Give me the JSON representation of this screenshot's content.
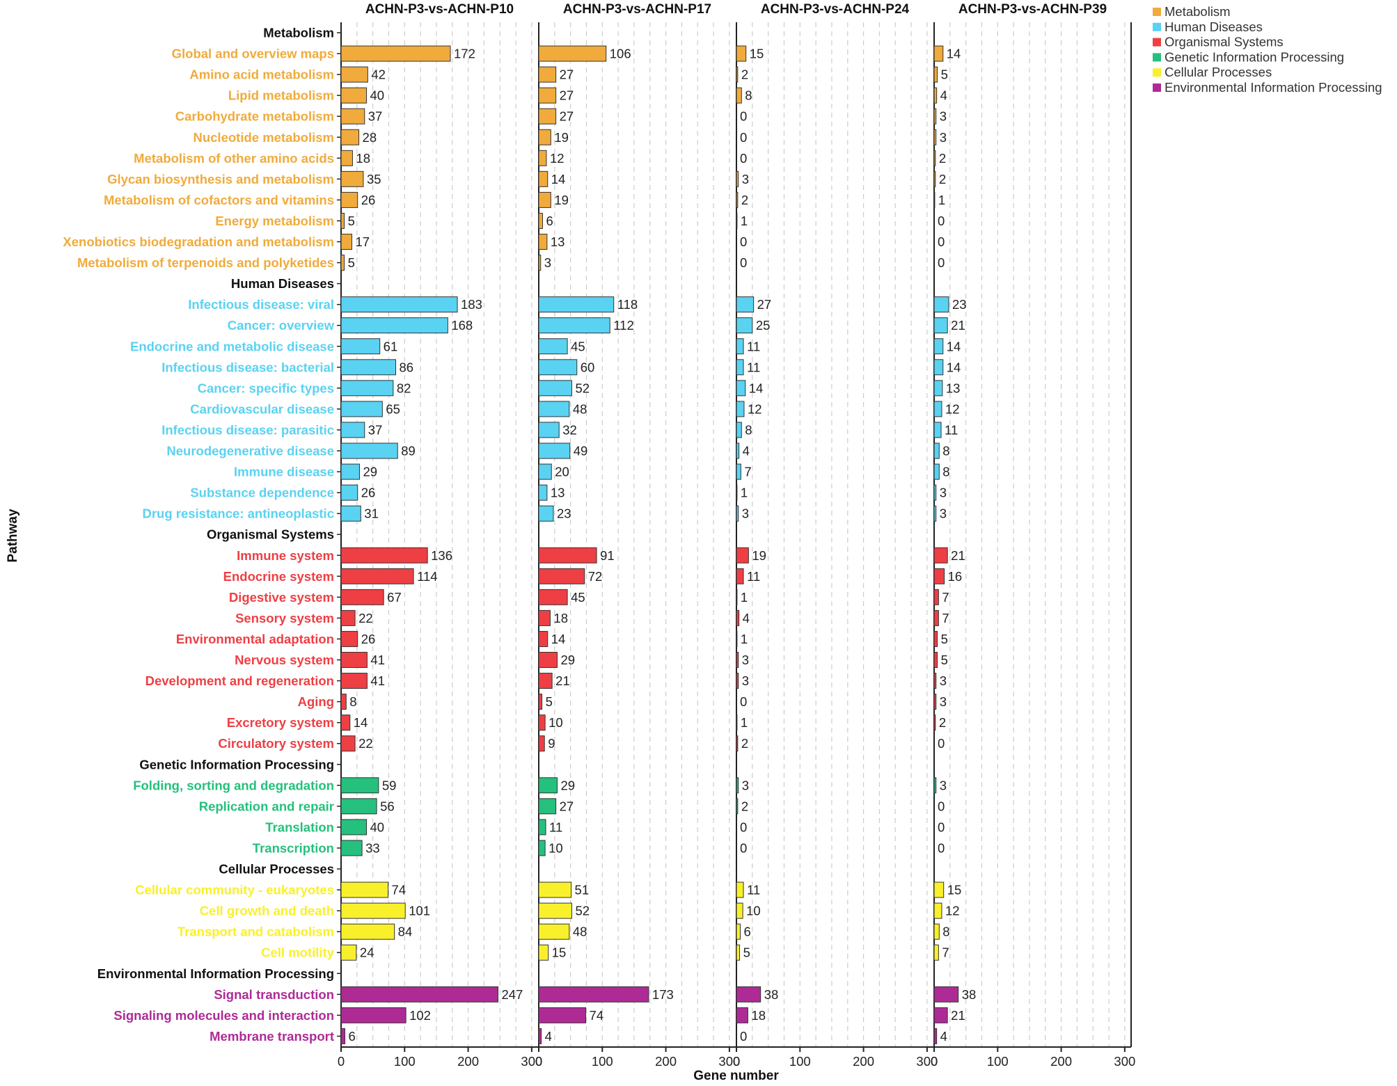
{
  "chart_data": {
    "type": "bar",
    "orientation": "horizontal",
    "xlabel": "Gene number",
    "ylabel": "Pathway",
    "xlim": [
      0,
      310
    ],
    "xticks": [
      0,
      100,
      200,
      300
    ],
    "grid": true,
    "legend_position": "top-right",
    "colors": {
      "Metabolism": "#F0AB3C",
      "Human Diseases": "#5AD2F2",
      "Organismal Systems": "#EE3F44",
      "Genetic Information Processing": "#25C07D",
      "Cellular Processes": "#F9F02C",
      "Environmental Information Processing": "#AE2B96"
    },
    "legend": [
      "Metabolism",
      "Human Diseases",
      "Organismal Systems",
      "Genetic Information Processing",
      "Cellular Processes",
      "Environmental Information Processing"
    ],
    "panels": [
      "ACHN-P3-vs-ACHN-P10",
      "ACHN-P3-vs-ACHN-P17",
      "ACHN-P3-vs-ACHN-P24",
      "ACHN-P3-vs-ACHN-P39"
    ],
    "groups": [
      {
        "name": "Metabolism",
        "pathways": [
          {
            "name": "Global and overview maps",
            "values": [
              172,
              106,
              15,
              14
            ]
          },
          {
            "name": "Amino acid metabolism",
            "values": [
              42,
              27,
              2,
              5
            ]
          },
          {
            "name": "Lipid metabolism",
            "values": [
              40,
              27,
              8,
              4
            ]
          },
          {
            "name": "Carbohydrate metabolism",
            "values": [
              37,
              27,
              0,
              3
            ]
          },
          {
            "name": "Nucleotide metabolism",
            "values": [
              28,
              19,
              0,
              3
            ]
          },
          {
            "name": "Metabolism of other amino acids",
            "values": [
              18,
              12,
              0,
              2
            ]
          },
          {
            "name": "Glycan biosynthesis and metabolism",
            "values": [
              35,
              14,
              3,
              2
            ]
          },
          {
            "name": "Metabolism of cofactors and vitamins",
            "values": [
              26,
              19,
              2,
              1
            ]
          },
          {
            "name": "Energy metabolism",
            "values": [
              5,
              6,
              1,
              0
            ]
          },
          {
            "name": "Xenobiotics biodegradation and metabolism",
            "values": [
              17,
              13,
              0,
              0
            ]
          },
          {
            "name": "Metabolism of terpenoids and polyketides",
            "values": [
              5,
              3,
              0,
              0
            ]
          }
        ]
      },
      {
        "name": "Human Diseases",
        "pathways": [
          {
            "name": "Infectious disease: viral",
            "values": [
              183,
              118,
              27,
              23
            ]
          },
          {
            "name": "Cancer: overview",
            "values": [
              168,
              112,
              25,
              21
            ]
          },
          {
            "name": "Endocrine and metabolic disease",
            "values": [
              61,
              45,
              11,
              14
            ]
          },
          {
            "name": "Infectious disease: bacterial",
            "values": [
              86,
              60,
              11,
              14
            ]
          },
          {
            "name": "Cancer: specific types",
            "values": [
              82,
              52,
              14,
              13
            ]
          },
          {
            "name": "Cardiovascular disease",
            "values": [
              65,
              48,
              12,
              12
            ]
          },
          {
            "name": "Infectious disease: parasitic",
            "values": [
              37,
              32,
              8,
              11
            ]
          },
          {
            "name": "Neurodegenerative disease",
            "values": [
              89,
              49,
              4,
              8
            ]
          },
          {
            "name": "Immune disease",
            "values": [
              29,
              20,
              7,
              8
            ]
          },
          {
            "name": "Substance dependence",
            "values": [
              26,
              13,
              1,
              3
            ]
          },
          {
            "name": "Drug resistance: antineoplastic",
            "values": [
              31,
              23,
              3,
              3
            ]
          }
        ]
      },
      {
        "name": "Organismal Systems",
        "pathways": [
          {
            "name": "Immune system",
            "values": [
              136,
              91,
              19,
              21
            ]
          },
          {
            "name": "Endocrine system",
            "values": [
              114,
              72,
              11,
              16
            ]
          },
          {
            "name": "Digestive system",
            "values": [
              67,
              45,
              1,
              7
            ]
          },
          {
            "name": "Sensory system",
            "values": [
              22,
              18,
              4,
              7
            ]
          },
          {
            "name": "Environmental adaptation",
            "values": [
              26,
              14,
              1,
              5
            ]
          },
          {
            "name": "Nervous system",
            "values": [
              41,
              29,
              3,
              5
            ]
          },
          {
            "name": "Development and regeneration",
            "values": [
              41,
              21,
              3,
              3
            ]
          },
          {
            "name": "Aging",
            "values": [
              8,
              5,
              0,
              3
            ]
          },
          {
            "name": "Excretory system",
            "values": [
              14,
              10,
              1,
              2
            ]
          },
          {
            "name": "Circulatory system",
            "values": [
              22,
              9,
              2,
              0
            ]
          }
        ]
      },
      {
        "name": "Genetic Information Processing",
        "pathways": [
          {
            "name": "Folding, sorting and degradation",
            "values": [
              59,
              29,
              3,
              3
            ]
          },
          {
            "name": "Replication and repair",
            "values": [
              56,
              27,
              2,
              0
            ]
          },
          {
            "name": "Translation",
            "values": [
              40,
              11,
              0,
              0
            ]
          },
          {
            "name": "Transcription",
            "values": [
              33,
              10,
              0,
              0
            ]
          }
        ]
      },
      {
        "name": "Cellular Processes",
        "pathways": [
          {
            "name": "Cellular community - eukaryotes",
            "values": [
              74,
              51,
              11,
              15
            ]
          },
          {
            "name": "Cell growth and death",
            "values": [
              101,
              52,
              10,
              12
            ]
          },
          {
            "name": "Transport and catabolism",
            "values": [
              84,
              48,
              6,
              8
            ]
          },
          {
            "name": "Cell motility",
            "values": [
              24,
              15,
              5,
              7
            ]
          }
        ]
      },
      {
        "name": "Environmental Information Processing",
        "pathways": [
          {
            "name": "Signal transduction",
            "values": [
              247,
              173,
              38,
              38
            ]
          },
          {
            "name": "Signaling molecules and interaction",
            "values": [
              102,
              74,
              18,
              21
            ]
          },
          {
            "name": "Membrane transport",
            "values": [
              6,
              4,
              0,
              4
            ]
          }
        ]
      }
    ]
  }
}
